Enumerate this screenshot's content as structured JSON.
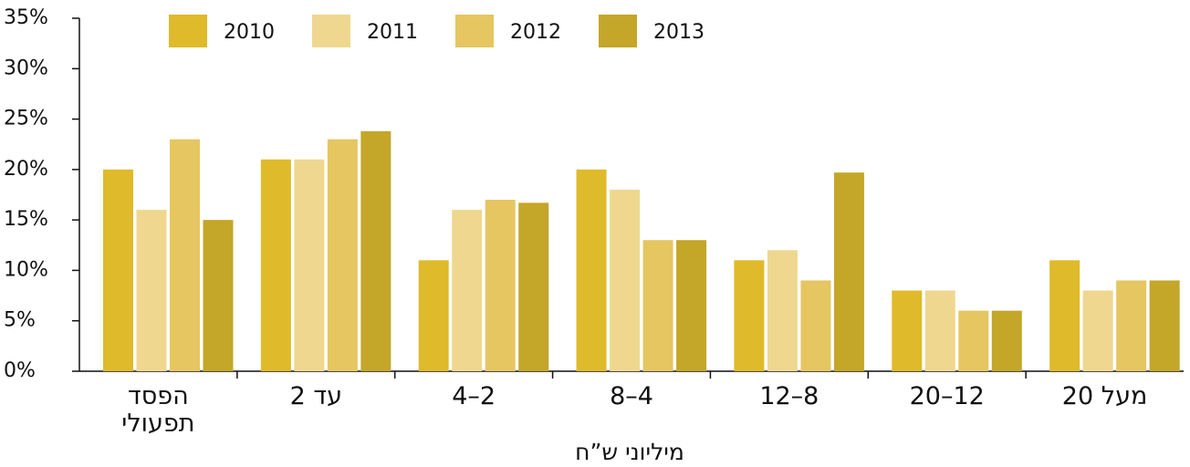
{
  "chart_data": {
    "type": "bar",
    "categories": [
      "הפסד תפעולי",
      "עד 2",
      "2–4",
      "4–8",
      "8–12",
      "12–20",
      "מעל 20"
    ],
    "xlabel": "מיליוני ש”ח",
    "series": [
      {
        "name": "2010",
        "color": "#dfba2a",
        "values": [
          20,
          21,
          11,
          20,
          11,
          8,
          11
        ]
      },
      {
        "name": "2011",
        "color": "#efd78f",
        "values": [
          16,
          21,
          16,
          18,
          12,
          8,
          8
        ]
      },
      {
        "name": "2012",
        "color": "#e5c660",
        "values": [
          23,
          23,
          17,
          13,
          9,
          6,
          9
        ]
      },
      {
        "name": "2013",
        "color": "#c4a628",
        "values": [
          15,
          23.8,
          16.7,
          13,
          19.7,
          6,
          9
        ]
      }
    ],
    "ylim": [
      0,
      35
    ],
    "yticks": [
      {
        "value": 0,
        "label": "0%"
      },
      {
        "value": 5,
        "label": "5%"
      },
      {
        "value": 10,
        "label": "10%"
      },
      {
        "value": 15,
        "label": "15%"
      },
      {
        "value": 20,
        "label": "20%"
      },
      {
        "value": 25,
        "label": "25%"
      },
      {
        "value": 30,
        "label": "30%"
      },
      {
        "value": 35,
        "label": "35%"
      }
    ],
    "legend": "top"
  }
}
